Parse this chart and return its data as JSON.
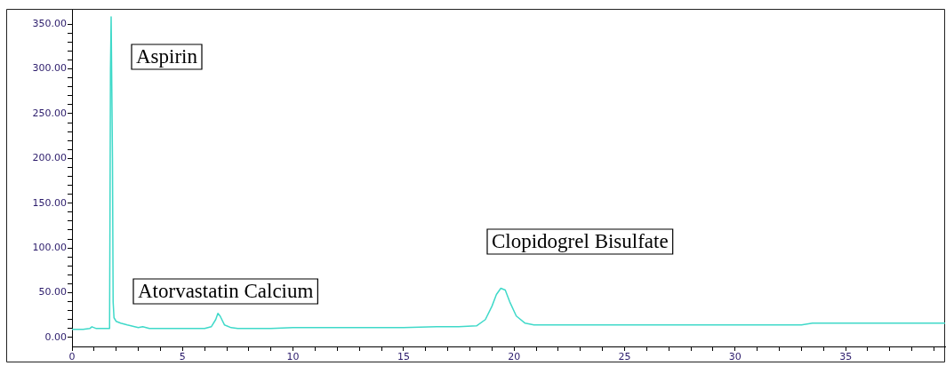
{
  "chart_data": {
    "type": "line",
    "x": [
      0,
      0.5,
      0.8,
      0.9,
      1.0,
      1.1,
      1.3,
      1.5,
      1.7,
      1.74,
      1.77,
      1.8,
      1.83,
      1.86,
      1.9,
      1.95,
      2.0,
      2.2,
      2.5,
      3.0,
      3.2,
      3.5,
      5,
      6.0,
      6.3,
      6.5,
      6.6,
      6.7,
      6.9,
      7.2,
      7.5,
      9,
      10,
      12,
      15,
      16.5,
      17.5,
      18.3,
      18.7,
      19.0,
      19.2,
      19.4,
      19.6,
      19.8,
      20.1,
      20.5,
      20.9,
      22,
      25,
      30,
      33,
      33.5,
      34,
      39.5
    ],
    "series": [
      {
        "color": "#3fd9c9",
        "values": [
          9,
          9,
          10,
          12,
          11,
          10,
          10,
          10,
          10,
          300,
          358,
          358,
          200,
          40,
          22,
          20,
          18,
          16,
          14,
          11,
          12,
          10,
          10,
          10,
          12,
          20,
          27,
          24,
          14,
          11,
          10,
          10,
          11,
          11,
          11,
          12,
          12,
          13,
          20,
          35,
          48,
          55,
          53,
          40,
          24,
          16,
          14,
          14,
          14,
          14,
          14,
          16,
          16,
          16
        ]
      }
    ],
    "xlim": [
      0,
      39.5
    ],
    "ylim": [
      -10,
      366
    ],
    "xticks": [
      0,
      {
        "value": 1,
        "label": null
      },
      {
        "value": 2,
        "label": null
      },
      {
        "value": 3,
        "label": null
      },
      {
        "value": 4,
        "label": null
      },
      5,
      {
        "value": 6,
        "label": null
      },
      {
        "value": 7,
        "label": null
      },
      {
        "value": 8,
        "label": null
      },
      {
        "value": 9,
        "label": null
      },
      10,
      {
        "value": 11,
        "label": null
      },
      {
        "value": 12,
        "label": null
      },
      {
        "value": 13,
        "label": null
      },
      {
        "value": 14,
        "label": null
      },
      15,
      {
        "value": 16,
        "label": null
      },
      {
        "value": 17,
        "label": null
      },
      {
        "value": 18,
        "label": null
      },
      {
        "value": 19,
        "label": null
      },
      20,
      {
        "value": 21,
        "label": null
      },
      {
        "value": 22,
        "label": null
      },
      {
        "value": 23,
        "label": null
      },
      {
        "value": 24,
        "label": null
      },
      25,
      {
        "value": 26,
        "label": null
      },
      {
        "value": 27,
        "label": null
      },
      {
        "value": 28,
        "label": null
      },
      {
        "value": 29,
        "label": null
      },
      30,
      {
        "value": 31,
        "label": null
      },
      {
        "value": 32,
        "label": null
      },
      {
        "value": 33,
        "label": null
      },
      {
        "value": 34,
        "label": null
      },
      35,
      {
        "value": 36,
        "label": null
      },
      {
        "value": 37,
        "label": null
      },
      {
        "value": 38,
        "label": null
      },
      {
        "value": 39,
        "label": null
      }
    ],
    "yticks": [
      {
        "value": 0,
        "label": "0.00"
      },
      {
        "value": 10,
        "label": null
      },
      {
        "value": 20,
        "label": null
      },
      {
        "value": 30,
        "label": null
      },
      {
        "value": 40,
        "label": null
      },
      {
        "value": 50,
        "label": "50.00"
      },
      {
        "value": 60,
        "label": null
      },
      {
        "value": 70,
        "label": null
      },
      {
        "value": 80,
        "label": null
      },
      {
        "value": 90,
        "label": null
      },
      {
        "value": 100,
        "label": "100.00"
      },
      {
        "value": 110,
        "label": null
      },
      {
        "value": 120,
        "label": null
      },
      {
        "value": 130,
        "label": null
      },
      {
        "value": 140,
        "label": null
      },
      {
        "value": 150,
        "label": "150.00"
      },
      {
        "value": 160,
        "label": null
      },
      {
        "value": 170,
        "label": null
      },
      {
        "value": 180,
        "label": null
      },
      {
        "value": 190,
        "label": null
      },
      {
        "value": 200,
        "label": "200.00"
      },
      {
        "value": 210,
        "label": null
      },
      {
        "value": 220,
        "label": null
      },
      {
        "value": 230,
        "label": null
      },
      {
        "value": 240,
        "label": null
      },
      {
        "value": 250,
        "label": "250.00"
      },
      {
        "value": 260,
        "label": null
      },
      {
        "value": 270,
        "label": null
      },
      {
        "value": 280,
        "label": null
      },
      {
        "value": 290,
        "label": null
      },
      {
        "value": 300,
        "label": "300.00"
      },
      {
        "value": 310,
        "label": null
      },
      {
        "value": 320,
        "label": null
      },
      {
        "value": 330,
        "label": null
      },
      {
        "value": 340,
        "label": null
      },
      {
        "value": 350,
        "label": "350.00"
      }
    ],
    "grid": false,
    "legend": false,
    "marker": "none",
    "line_style": "solid",
    "annotations": [
      "Aspirin",
      "Atorvastatin Calcium",
      "Clopidogrel Bisulfate"
    ]
  }
}
